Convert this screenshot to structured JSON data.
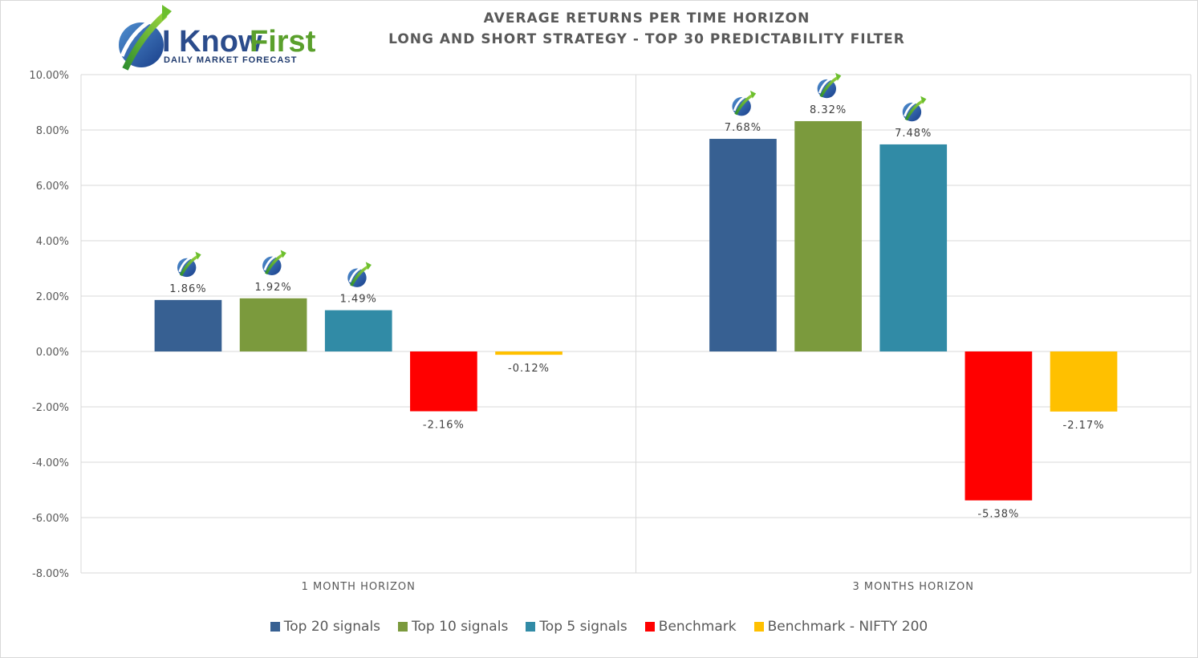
{
  "chart_data": {
    "type": "bar",
    "title": "AVERAGE RETURNS PER TIME HORIZON",
    "subtitle": "LONG AND SHORT STRATEGY - TOP 30 PREDICTABILITY FILTER",
    "categories": [
      "1 MONTH HORIZON",
      "3 MONTHS HORIZON"
    ],
    "series": [
      {
        "name": "Top 20 signals",
        "color": "#376092",
        "values": [
          1.86,
          7.68
        ],
        "labels": [
          "1.86%",
          "7.68%"
        ]
      },
      {
        "name": "Top 10 signals",
        "color": "#7B9A3D",
        "values": [
          1.92,
          8.32
        ],
        "labels": [
          "1.92%",
          "8.32%"
        ]
      },
      {
        "name": "Top 5 signals",
        "color": "#318BA6",
        "values": [
          1.49,
          7.48
        ],
        "labels": [
          "1.49%",
          "7.48%"
        ]
      },
      {
        "name": "Benchmark",
        "color": "#FF0000",
        "values": [
          -2.16,
          -5.38
        ],
        "labels": [
          "-2.16%",
          "-5.38%"
        ]
      },
      {
        "name": "Benchmark - NIFTY 200",
        "color": "#FFC000",
        "values": [
          -0.12,
          -2.17
        ],
        "labels": [
          "-0.12%",
          "-2.17%"
        ]
      }
    ],
    "ylim": [
      -8,
      10
    ],
    "yticks": [
      "10.00%",
      "8.00%",
      "6.00%",
      "4.00%",
      "2.00%",
      "0.00%",
      "-2.00%",
      "-4.00%",
      "-6.00%",
      "-8.00%"
    ],
    "ytick_values": [
      10,
      8,
      6,
      4,
      2,
      0,
      -2,
      -4,
      -6,
      -8
    ],
    "grid": true,
    "legend_position": "bottom",
    "marker_icon": "iknowfirst-logo-icon"
  },
  "logo": {
    "name_part1": "I Know",
    "name_part2": "First",
    "tagline": "DAILY MARKET FORECAST"
  }
}
